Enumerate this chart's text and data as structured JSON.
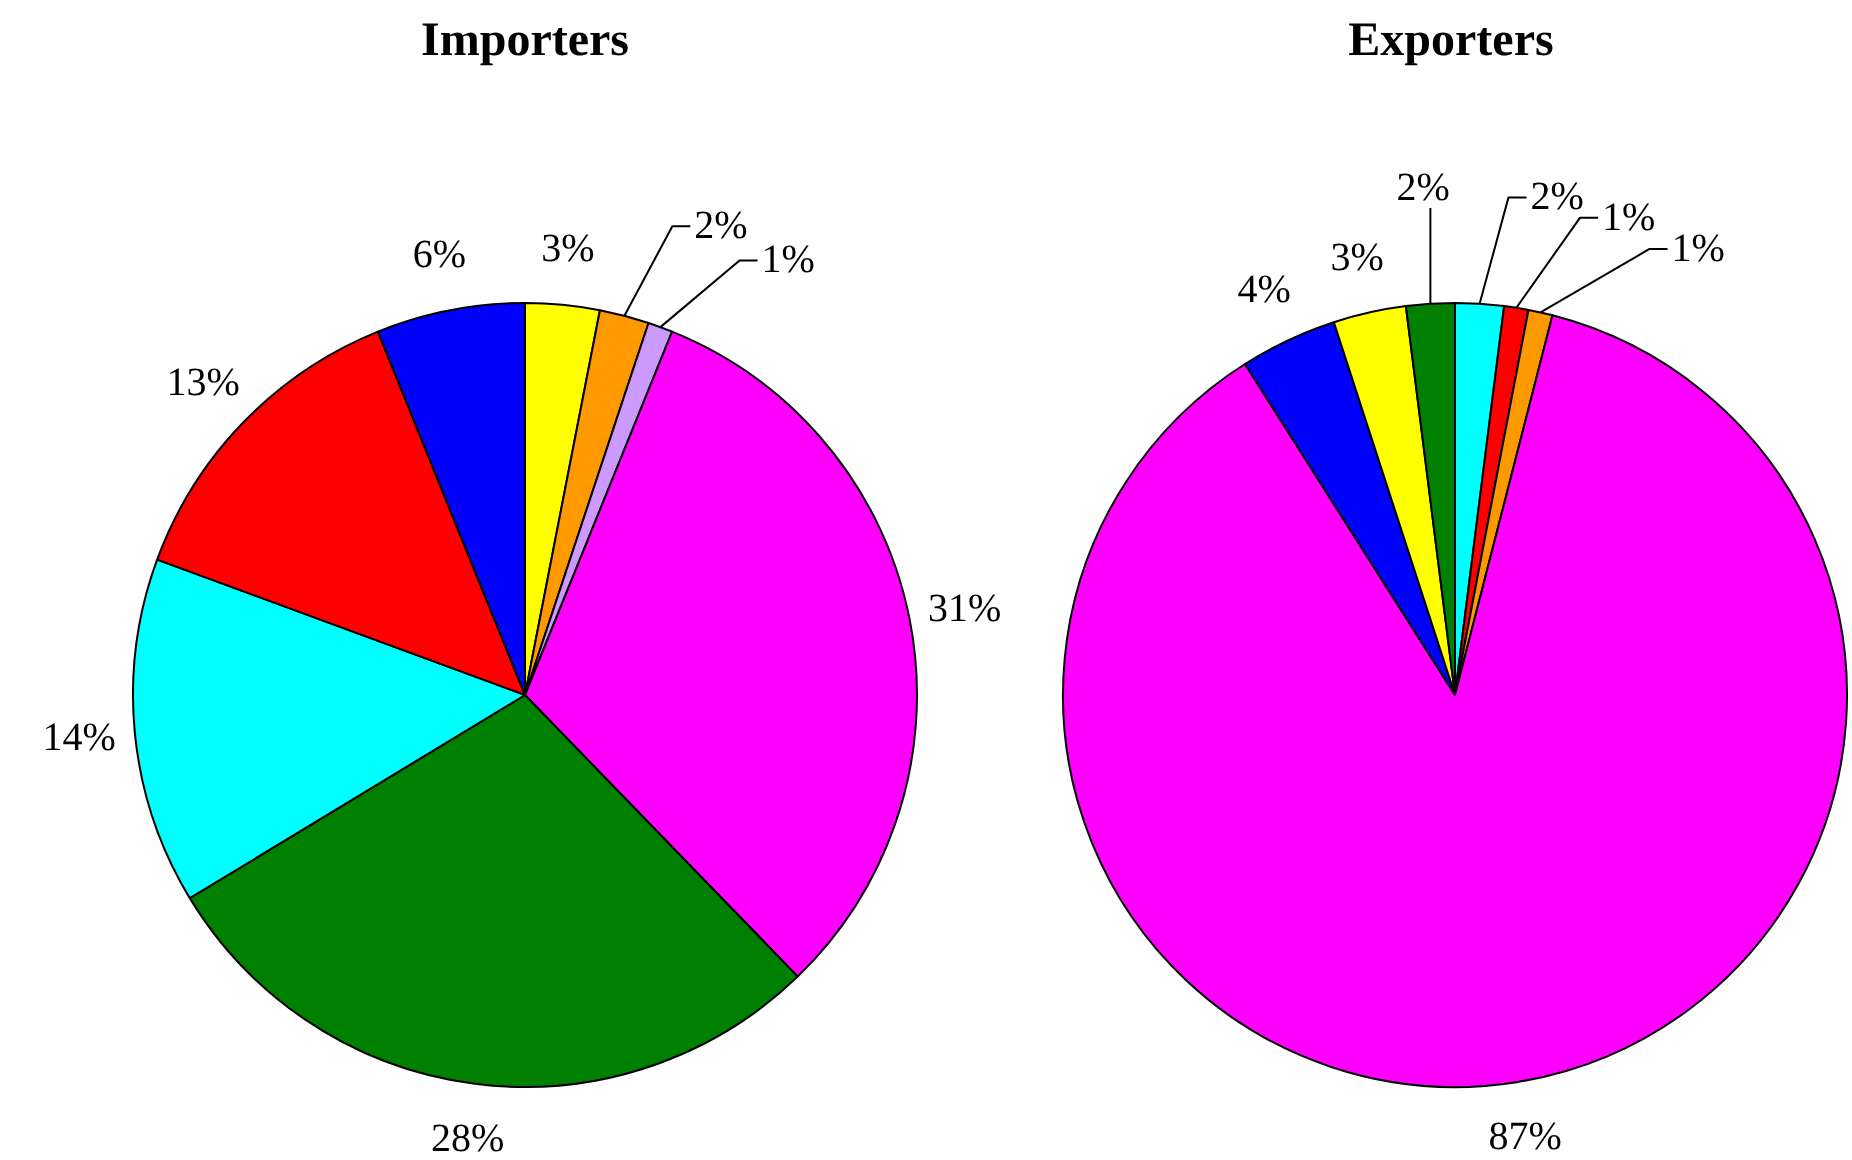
{
  "chart_data": [
    {
      "type": "pie",
      "title": "Importers",
      "categories": [
        null,
        null,
        null,
        null,
        null,
        null,
        null,
        null
      ],
      "values": [
        3,
        2,
        1,
        31,
        28,
        14,
        13,
        6
      ],
      "colors": [
        "#ffff00",
        "#ff9900",
        "#cc99ff",
        "#ff00ff",
        "#008000",
        "#00ffff",
        "#ff0000",
        "#0000ff"
      ],
      "value_labels": [
        "3%",
        "2%",
        "1%",
        "31%",
        "28%",
        "14%",
        "13%",
        "6%"
      ]
    },
    {
      "type": "pie",
      "title": "Exporters",
      "categories": [
        null,
        null,
        null,
        null,
        null,
        null,
        null
      ],
      "values": [
        2,
        1,
        1,
        87,
        4,
        3,
        2
      ],
      "colors": [
        "#00ffff",
        "#ff0000",
        "#ff9900",
        "#ff00ff",
        "#0000ff",
        "#ffff00",
        "#008000"
      ],
      "value_labels": [
        "2%",
        "1%",
        "1%",
        "87%",
        "4%",
        "3%",
        "2%"
      ]
    }
  ]
}
